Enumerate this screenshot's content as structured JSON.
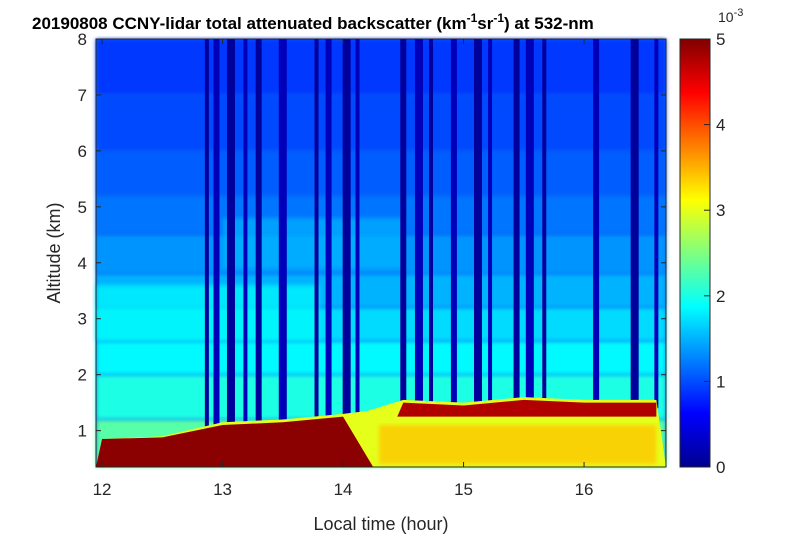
{
  "chart_data": {
    "type": "heatmap",
    "title": {
      "prefix": "20190808 CCNY-lidar total attenuated backscatter (km",
      "sup1": "-1",
      "mid": "sr",
      "sup2": "-1",
      "suffix": ") at 532-nm"
    },
    "xlabel": "Local time (hour)",
    "ylabel": "Altitude (km)",
    "xlim": [
      11.95,
      16.68
    ],
    "ylim": [
      0.35,
      8
    ],
    "x_ticks": [
      "12",
      "13",
      "14",
      "15",
      "16"
    ],
    "y_ticks": [
      "1",
      "2",
      "3",
      "4",
      "5",
      "6",
      "7",
      "8"
    ],
    "colorbar": {
      "colormap": "jet",
      "clim": [
        0,
        5
      ],
      "ticks": [
        "0",
        "1",
        "2",
        "3",
        "4",
        "5"
      ],
      "exponent_base": "10",
      "exponent_power": "-3"
    },
    "features": {
      "boundary_layer_top_km": [
        [
          12.0,
          0.85
        ],
        [
          12.5,
          0.9
        ],
        [
          13.0,
          1.15
        ],
        [
          13.5,
          1.2
        ],
        [
          14.0,
          1.3
        ],
        [
          14.2,
          1.35
        ],
        [
          14.5,
          1.55
        ],
        [
          15.0,
          1.5
        ],
        [
          15.5,
          1.6
        ],
        [
          16.0,
          1.55
        ],
        [
          16.6,
          1.55
        ]
      ],
      "low_signal_columns_hour": [
        12.87,
        12.95,
        13.07,
        13.19,
        13.3,
        13.5,
        13.78,
        13.88,
        14.03,
        14.12,
        14.5,
        14.63,
        14.73,
        14.92,
        15.12,
        15.22,
        15.44,
        15.55,
        15.67,
        16.1,
        16.42,
        16.6
      ]
    }
  }
}
